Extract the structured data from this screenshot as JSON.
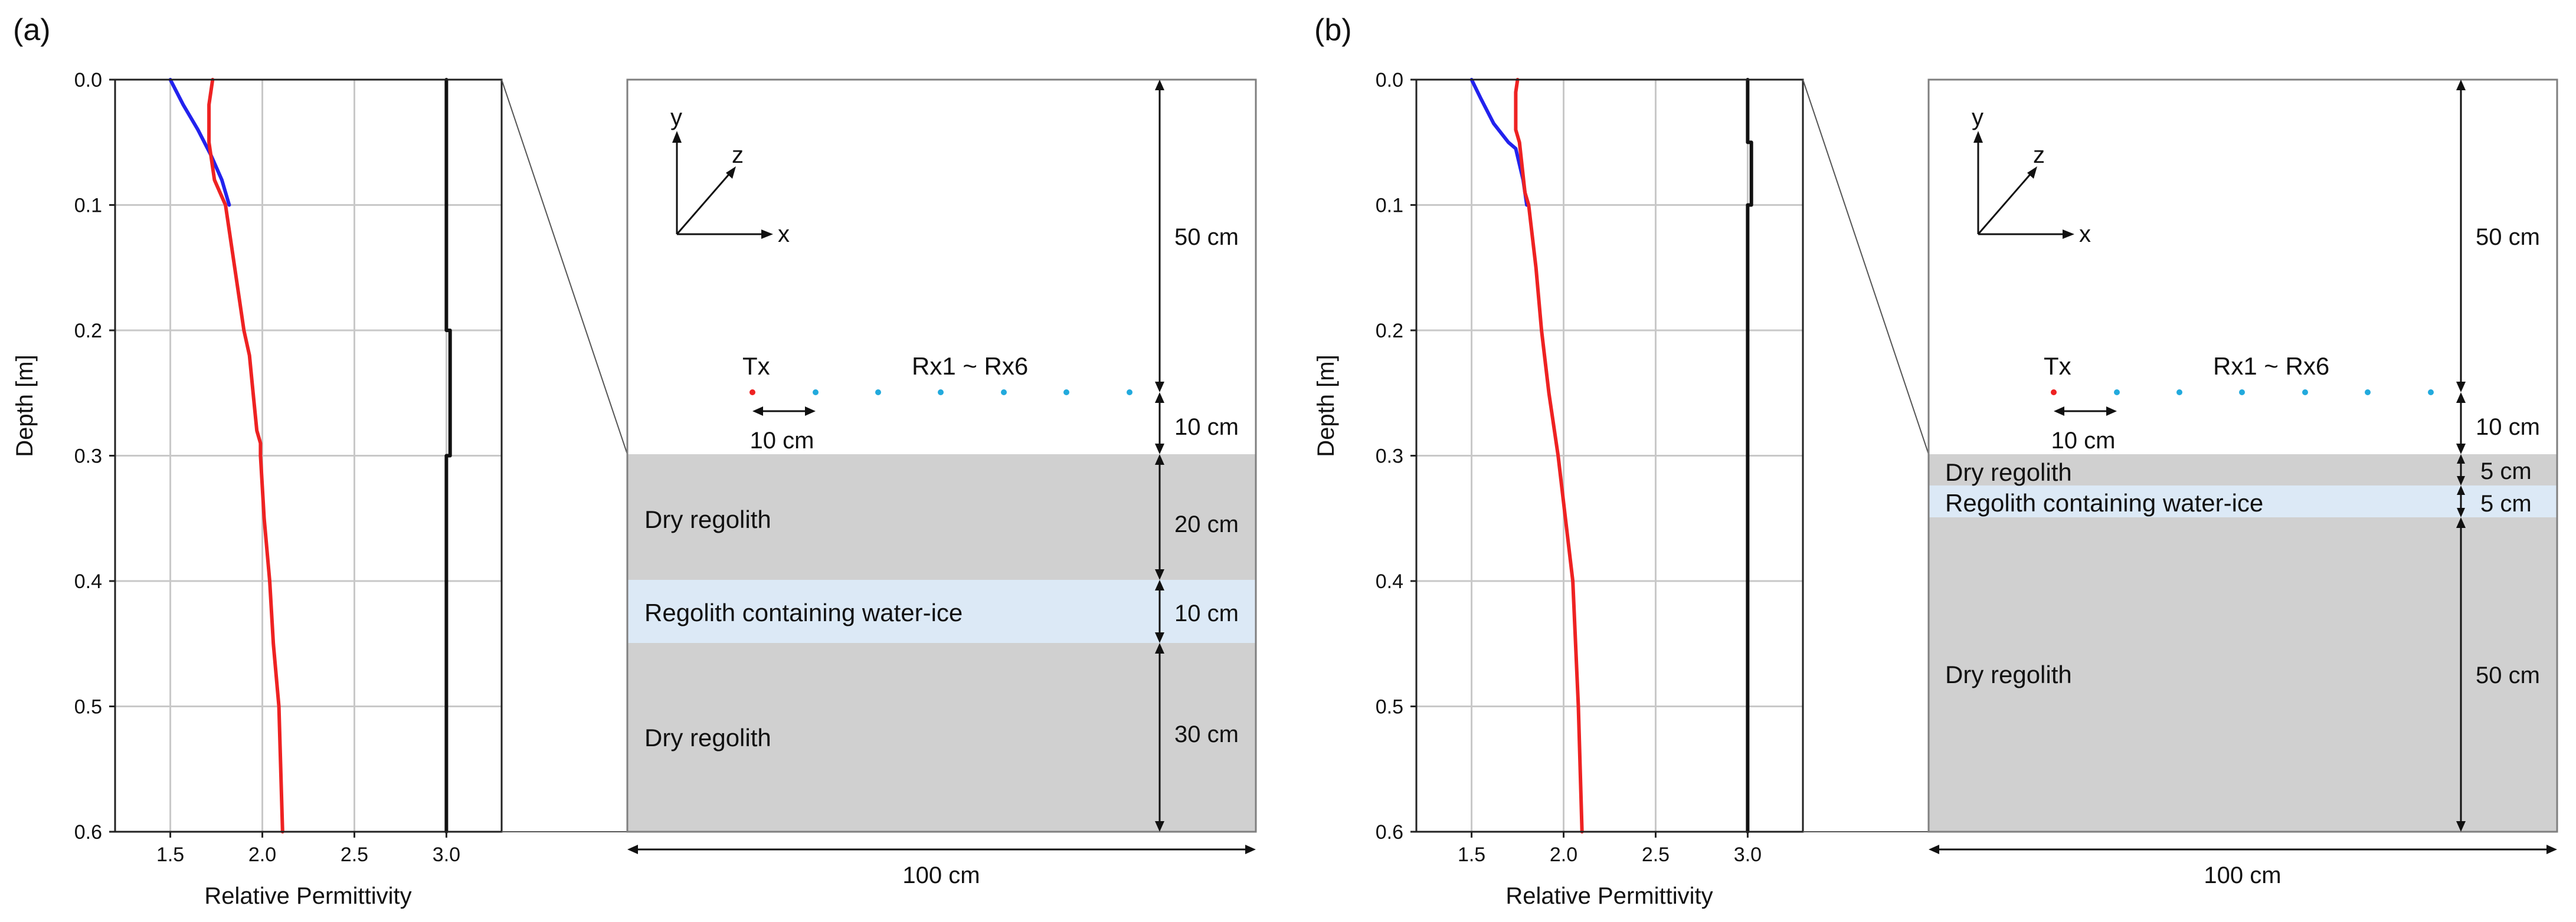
{
  "figure": {
    "panels": [
      {
        "id": "a",
        "label": "(a)",
        "layer_labels": [
          "Dry regolith",
          "Regolith containing water-ice",
          "Dry regolith"
        ],
        "dims": [
          "50 cm",
          "10 cm",
          "20 cm",
          "10 cm",
          "30 cm"
        ],
        "tx_label": "Tx",
        "rx_label": "Rx1 ~ Rx6",
        "spacing_label": "10 cm",
        "width_label": "100 cm",
        "axes_letters": [
          "x",
          "y",
          "z"
        ]
      },
      {
        "id": "b",
        "label": "(b)",
        "layer_labels": [
          "Dry regolith",
          "Regolith containing water-ice",
          "Dry regolith"
        ],
        "dims": [
          "50 cm",
          "10 cm",
          "5 cm",
          "5 cm",
          "50 cm"
        ],
        "tx_label": "Tx",
        "rx_label": "Rx1 ~ Rx6",
        "spacing_label": "10 cm",
        "width_label": "100 cm",
        "axes_letters": [
          "x",
          "y",
          "z"
        ]
      }
    ],
    "colors": {
      "blue_curve": "#2222ee",
      "red_curve": "#ee2222",
      "black_curve": "#111111",
      "dry_layer": "#d0d0d0",
      "ice_layer": "#dce9f6",
      "tx_dot": "#ee2222",
      "rx_dot": "#22aadd"
    }
  },
  "chart_data": [
    {
      "type": "line",
      "panel": "(a)",
      "xlabel": "Relative Permittivity",
      "ylabel": "Depth [m]",
      "xlim": [
        1.2,
        3.3
      ],
      "ylim": [
        0.6,
        0.0
      ],
      "xticks": [
        1.5,
        2.0,
        2.5,
        3.0
      ],
      "xtick_labels": [
        "1.5",
        "2.0",
        "2.5",
        "3.0"
      ],
      "yticks": [
        0.0,
        0.1,
        0.2,
        0.3,
        0.4,
        0.5,
        0.6
      ],
      "ytick_labels": [
        "0.0",
        "0.1",
        "0.2",
        "0.3",
        "0.4",
        "0.5",
        "0.6"
      ],
      "grid": true,
      "series": [
        {
          "name": "blue",
          "color": "#2222ee",
          "x": [
            1.5,
            1.57,
            1.65,
            1.72,
            1.78,
            1.82
          ],
          "y": [
            0.0,
            0.02,
            0.04,
            0.06,
            0.08,
            0.1
          ]
        },
        {
          "name": "red",
          "color": "#ee2222",
          "x": [
            1.73,
            1.71,
            1.71,
            1.74,
            1.8,
            1.84,
            1.88,
            1.9,
            1.93,
            1.95,
            1.97,
            1.99,
            1.99,
            2.01,
            2.04,
            2.06,
            2.09,
            2.11
          ],
          "y": [
            0.0,
            0.02,
            0.05,
            0.08,
            0.1,
            0.14,
            0.18,
            0.2,
            0.22,
            0.25,
            0.28,
            0.29,
            0.3,
            0.35,
            0.4,
            0.45,
            0.5,
            0.6
          ]
        },
        {
          "name": "black",
          "color": "#111111",
          "x": [
            3.0,
            3.0,
            3.02,
            3.02,
            3.0,
            3.0
          ],
          "y": [
            0.0,
            0.2,
            0.2,
            0.3,
            0.3,
            0.6
          ]
        }
      ]
    },
    {
      "type": "line",
      "panel": "(b)",
      "xlabel": "Relative Permittivity",
      "ylabel": "Depth [m]",
      "xlim": [
        1.2,
        3.3
      ],
      "ylim": [
        0.6,
        0.0
      ],
      "xticks": [
        1.5,
        2.0,
        2.5,
        3.0
      ],
      "xtick_labels": [
        "1.5",
        "2.0",
        "2.5",
        "3.0"
      ],
      "yticks": [
        0.0,
        0.1,
        0.2,
        0.3,
        0.4,
        0.5,
        0.6
      ],
      "ytick_labels": [
        "0.0",
        "0.1",
        "0.2",
        "0.3",
        "0.4",
        "0.5",
        "0.6"
      ],
      "grid": true,
      "series": [
        {
          "name": "blue",
          "color": "#2222ee",
          "x": [
            1.5,
            1.55,
            1.62,
            1.7,
            1.74,
            1.78,
            1.8
          ],
          "y": [
            0.0,
            0.015,
            0.035,
            0.05,
            0.055,
            0.08,
            0.1
          ]
        },
        {
          "name": "red",
          "color": "#ee2222",
          "x": [
            1.75,
            1.74,
            1.74,
            1.76,
            1.79,
            1.81,
            1.85,
            1.88,
            1.92,
            1.97,
            2.01,
            2.05,
            2.08,
            2.1
          ],
          "y": [
            0.0,
            0.01,
            0.04,
            0.05,
            0.09,
            0.1,
            0.15,
            0.2,
            0.25,
            0.3,
            0.35,
            0.4,
            0.5,
            0.6
          ]
        },
        {
          "name": "black",
          "color": "#111111",
          "x": [
            3.0,
            3.0,
            3.02,
            3.02,
            3.0,
            3.0
          ],
          "y": [
            0.0,
            0.05,
            0.05,
            0.1,
            0.1,
            0.6
          ]
        }
      ]
    }
  ]
}
